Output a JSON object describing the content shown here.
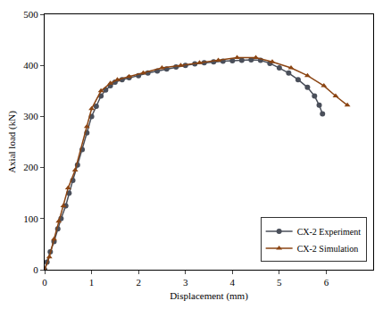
{
  "chart_data": {
    "type": "line",
    "x_label": "Displacement (mm)",
    "y_label": "Axial load (kN)",
    "xlim": [
      0,
      7
    ],
    "xticks": [
      0,
      1,
      2,
      3,
      4,
      5,
      6
    ],
    "ylim": [
      0,
      500
    ],
    "yticks": [
      0,
      100,
      200,
      300,
      400,
      500
    ],
    "grid": false,
    "legend": "bottom right",
    "series": [
      {
        "name": "CX-2 Experiment",
        "color": "#4a4f5a",
        "marker": "circle",
        "line_style": "solid",
        "x": [
          0,
          0.05,
          0.12,
          0.2,
          0.28,
          0.35,
          0.45,
          0.52,
          0.6,
          0.7,
          0.8,
          0.9,
          1.0,
          1.1,
          1.2,
          1.3,
          1.4,
          1.5,
          1.65,
          1.8,
          2.0,
          2.2,
          2.4,
          2.6,
          2.8,
          3.0,
          3.2,
          3.4,
          3.6,
          3.8,
          4.0,
          4.2,
          4.4,
          4.6,
          4.8,
          5.0,
          5.2,
          5.4,
          5.6,
          5.75,
          5.85,
          5.92
        ],
        "values": [
          0,
          15,
          35,
          55,
          80,
          100,
          125,
          150,
          175,
          205,
          235,
          268,
          300,
          320,
          340,
          352,
          360,
          367,
          372,
          376,
          380,
          385,
          389,
          393,
          397,
          400,
          403,
          405,
          407,
          408,
          409,
          410,
          411,
          410,
          404,
          395,
          385,
          372,
          357,
          340,
          322,
          305
        ]
      },
      {
        "name": "CX-2 Simulation",
        "color": "#8b4513",
        "marker": "triangle-up",
        "line_style": "solid",
        "x": [
          0,
          0.1,
          0.2,
          0.3,
          0.4,
          0.5,
          0.65,
          0.9,
          1.0,
          1.2,
          1.4,
          1.55,
          1.8,
          2.1,
          2.5,
          2.9,
          3.3,
          3.7,
          4.1,
          4.5,
          4.85,
          5.25,
          5.6,
          5.95,
          6.2,
          6.45
        ],
        "values": [
          0,
          25,
          60,
          95,
          125,
          160,
          195,
          280,
          315,
          350,
          365,
          372,
          378,
          385,
          395,
          400,
          405,
          410,
          415,
          415,
          407,
          395,
          380,
          360,
          340,
          322
        ]
      }
    ]
  }
}
